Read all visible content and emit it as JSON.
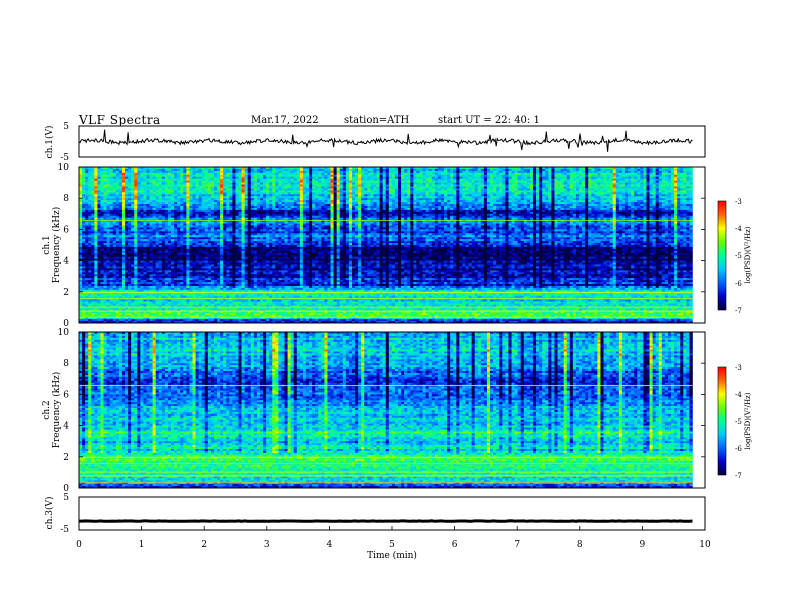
{
  "header": {
    "title": "VLF  Spectra",
    "date": "Mar.17, 2022",
    "station": "station=ATH",
    "start": "start  UT  =   22: 40: 1"
  },
  "colors": {
    "colormap": [
      "#000040",
      "#0000c8",
      "#0064ff",
      "#00c8ff",
      "#00ff96",
      "#64ff00",
      "#ffff00",
      "#ff6400",
      "#ff0000",
      "#ffb4c8",
      "#ffffff"
    ]
  },
  "chart_data": [
    {
      "type": "line",
      "panel": "ch1-waveform",
      "ylabel": "ch.1(V)",
      "ylim": [
        -5,
        5
      ],
      "yticks": [
        "5",
        "-5"
      ],
      "xlim": [
        0,
        10
      ],
      "note_values": "noisy waveform around 0 V, amplitude about ±1 V, spikes up to ~3 V"
    },
    {
      "type": "heatmap",
      "panel": "ch1-spectrogram",
      "ylabel_top": "ch.1",
      "ylabel": "Frequency  (kHz)",
      "ylim": [
        0,
        10
      ],
      "yticks": [
        "0",
        "2",
        "4",
        "6",
        "8",
        "10"
      ],
      "xlim": [
        0,
        9.8
      ],
      "colorbar_label": "log(PSD)(V²/Hz)",
      "colorbar_range": [
        -7,
        -3
      ],
      "colorbar_ticks": [
        "-3",
        "-4",
        "-5",
        "-6",
        "-7"
      ],
      "freq_profile": [
        {
          "f": 0.0,
          "v": -7.0
        },
        {
          "f": 0.4,
          "v": -4.8
        },
        {
          "f": 0.8,
          "v": -5.0
        },
        {
          "f": 1.2,
          "v": -5.3
        },
        {
          "f": 1.6,
          "v": -5.4
        },
        {
          "f": 2.0,
          "v": -4.9
        },
        {
          "f": 2.4,
          "v": -6.3
        },
        {
          "f": 3.0,
          "v": -6.4
        },
        {
          "f": 3.6,
          "v": -6.6
        },
        {
          "f": 4.2,
          "v": -6.9
        },
        {
          "f": 4.8,
          "v": -6.7
        },
        {
          "f": 5.4,
          "v": -5.9
        },
        {
          "f": 6.0,
          "v": -6.1
        },
        {
          "f": 6.6,
          "v": -5.8
        },
        {
          "f": 7.0,
          "v": -6.6
        },
        {
          "f": 7.6,
          "v": -5.6
        },
        {
          "f": 8.4,
          "v": -5.2
        },
        {
          "f": 9.2,
          "v": -5.3
        },
        {
          "f": 10.0,
          "v": -5.4
        }
      ]
    },
    {
      "type": "heatmap",
      "panel": "ch2-spectrogram",
      "ylabel_top": "ch.2",
      "ylabel": "Frequency  (kHz)",
      "ylim": [
        0,
        10
      ],
      "yticks": [
        "0",
        "2",
        "4",
        "6",
        "8",
        "10"
      ],
      "xlim": [
        0,
        9.8
      ],
      "colorbar_label": "log(PSD)(V²/Hz)",
      "colorbar_range": [
        -7,
        -3
      ],
      "colorbar_ticks": [
        "-3",
        "-4",
        "-5",
        "-6",
        "-7"
      ],
      "freq_profile": [
        {
          "f": 0.0,
          "v": -6.5
        },
        {
          "f": 0.4,
          "v": -5.2
        },
        {
          "f": 0.8,
          "v": -5.1
        },
        {
          "f": 1.2,
          "v": -4.9
        },
        {
          "f": 1.6,
          "v": -5.0
        },
        {
          "f": 2.0,
          "v": -4.7
        },
        {
          "f": 2.4,
          "v": -5.3
        },
        {
          "f": 3.0,
          "v": -5.4
        },
        {
          "f": 3.4,
          "v": -4.9
        },
        {
          "f": 4.0,
          "v": -5.5
        },
        {
          "f": 4.6,
          "v": -5.3
        },
        {
          "f": 5.2,
          "v": -5.7
        },
        {
          "f": 5.8,
          "v": -5.9
        },
        {
          "f": 6.4,
          "v": -6.0
        },
        {
          "f": 7.0,
          "v": -6.4
        },
        {
          "f": 7.6,
          "v": -5.7
        },
        {
          "f": 8.4,
          "v": -5.4
        },
        {
          "f": 9.2,
          "v": -5.5
        },
        {
          "f": 10.0,
          "v": -5.6
        }
      ]
    },
    {
      "type": "line",
      "panel": "ch3-waveform",
      "ylabel": "ch.3(V)",
      "ylim": [
        -5,
        5
      ],
      "yticks": [
        "5",
        "-5"
      ],
      "xlim": [
        0,
        10
      ],
      "xlabel": "Time  (min)",
      "xticks": [
        "0",
        "1",
        "2",
        "3",
        "4",
        "5",
        "6",
        "7",
        "8",
        "9",
        "10"
      ],
      "level_v": -2.3,
      "note_values": "near-constant signal at about -2.3 V"
    }
  ]
}
